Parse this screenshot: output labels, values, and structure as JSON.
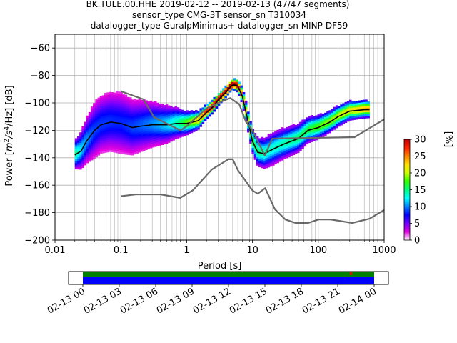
{
  "header": {
    "line1": "BK.TULE.00.HHE   2019-02-12 -- 2019-02-13  (47/47 segments)",
    "line2": "sensor_type CMG-3T sensor_sn T310034",
    "line3": "datalogger_type GuralpMinimus+ datalogger_sn MINP-DF59"
  },
  "chart_data": {
    "type": "ppsd",
    "title": "BK.TULE.00.HHE   2019-02-12 -- 2019-02-13  (47/47 segments)",
    "xlabel": "Period [s]",
    "ylabel": "Power [m²/s⁴/Hz] [dB]",
    "ylabel_parts": {
      "pre": "Power [",
      "m": "m",
      "m_exp": "2",
      "s": "/s",
      "s_exp": "4",
      "post": "/Hz] [dB]"
    },
    "xscale": "log",
    "xlim": [
      0.01,
      1000
    ],
    "ylim": [
      -200,
      -50
    ],
    "x_ticks": [
      0.01,
      0.1,
      1,
      10,
      100,
      1000
    ],
    "x_tick_labels": [
      "0.01",
      "0.1",
      "1",
      "10",
      "100",
      "1000"
    ],
    "y_ticks": [
      -200,
      -180,
      -160,
      -140,
      -120,
      -100,
      -80,
      -60
    ],
    "y_tick_labels": [
      "−200",
      "−180",
      "−160",
      "−140",
      "−120",
      "−100",
      "−80",
      "−60"
    ],
    "grid": true,
    "colorbar": {
      "label": "[%]",
      "range": [
        0,
        30
      ],
      "ticks": [
        0,
        5,
        10,
        15,
        20,
        25,
        30
      ],
      "tick_labels": [
        "0",
        "5",
        "10",
        "15",
        "20",
        "25",
        "30"
      ],
      "colors": [
        "#ffffff",
        "#e000e0",
        "#7000ff",
        "#0000ff",
        "#0080ff",
        "#00ffff",
        "#00ff80",
        "#30ff00",
        "#ccff00",
        "#ffe000",
        "#ff8000",
        "#ff2000",
        "#c00000"
      ]
    },
    "series": [
      {
        "name": "Mode",
        "color": "#000000",
        "x": [
          0.02,
          0.025,
          0.03,
          0.04,
          0.05,
          0.07,
          0.1,
          0.15,
          0.2,
          0.3,
          0.5,
          0.7,
          1,
          1.5,
          2,
          2.5,
          3,
          4,
          4.5,
          5,
          5.5,
          6,
          7,
          8,
          9,
          10,
          12,
          15,
          20,
          30,
          50,
          70,
          100,
          150,
          200,
          300,
          500,
          600
        ],
        "values": [
          -138,
          -135,
          -128,
          -120,
          -116,
          -114,
          -115,
          -118,
          -117,
          -116,
          -116,
          -115,
          -115,
          -113,
          -107,
          -103,
          -98,
          -92,
          -89,
          -87,
          -87,
          -88,
          -95,
          -107,
          -118,
          -128,
          -136,
          -137,
          -134,
          -130,
          -126,
          -120,
          -118,
          -114,
          -110,
          -106,
          -105,
          -105
        ]
      },
      {
        "name": "NLNM",
        "color": "#696969",
        "x": [
          0.1,
          0.17,
          0.4,
          0.8,
          1.24,
          2.4,
          4.3,
          5,
          6,
          10,
          12,
          15.6,
          21.9,
          31.6,
          45,
          70,
          101,
          154,
          328,
          600,
          1000
        ],
        "values": [
          -168,
          -166.7,
          -166.7,
          -169.2,
          -163.7,
          -148.6,
          -141.1,
          -141.1,
          -149,
          -163.8,
          -166.2,
          -162.1,
          -177.5,
          -185,
          -187.5,
          -187.5,
          -185,
          -185,
          -187.5,
          -184.4,
          -178
        ]
      },
      {
        "name": "NHNM",
        "color": "#696969",
        "x": [
          0.1,
          0.22,
          0.32,
          0.8,
          1,
          2,
          3.8,
          4.6,
          6.3,
          7.9,
          10,
          15.4,
          20,
          354.8,
          1000
        ],
        "values": [
          -91.5,
          -97.4,
          -110.5,
          -120,
          -117,
          -104,
          -98,
          -96.5,
          -101,
          -113.5,
          -120,
          -138.5,
          -126,
          -125,
          -112
        ]
      }
    ],
    "timeline": {
      "x_tick_labels": [
        "02-13 00",
        "02-13 03",
        "02-13 06",
        "02-13 09",
        "02-13 12",
        "02-13 15",
        "02-13 18",
        "02-13 21",
        "02-14 00"
      ],
      "bands": [
        {
          "name": "available-data",
          "color": "#008000"
        },
        {
          "name": "used-segments",
          "color": "#0000ff"
        }
      ],
      "gap_color": "#ff0000"
    }
  }
}
